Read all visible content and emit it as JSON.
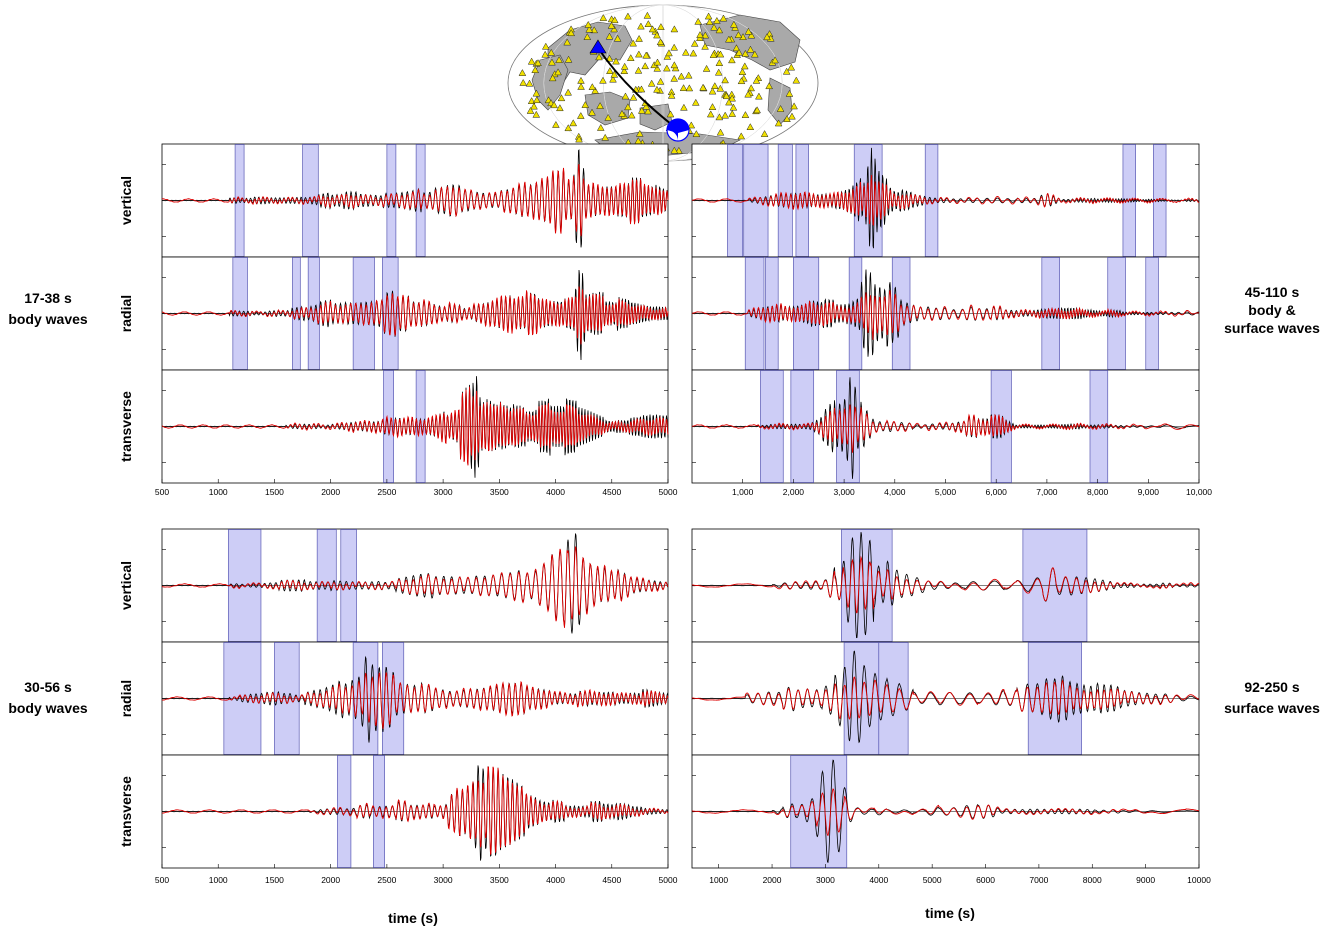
{
  "figure": {
    "xlabel": "time (s)",
    "band_labels": {
      "body_17_38": [
        "17-38 s",
        "body waves"
      ],
      "body_30_56": [
        "30-56 s",
        "body waves"
      ],
      "bodysurf_45_110": [
        "45-110 s",
        "body &",
        "surface waves"
      ],
      "surf_92_250": [
        "92-250 s",
        "surface waves"
      ]
    },
    "component_labels": [
      "vertical",
      "radial",
      "transverse"
    ],
    "colors": {
      "observed": "#000000",
      "synthetic": "#dd0000",
      "window_fill": "#c8c8f5",
      "window_stroke": "#5a5ab4",
      "station": "#f0e000",
      "source": "#0000ff"
    }
  },
  "map": {
    "projection": "global map (Hammer-like, Pacific-centred)",
    "station_marker": "yellow triangles",
    "selected_station": "blue triangle",
    "source": "blue-white focal mechanism beachball"
  },
  "chart_data": [
    {
      "id": "panel-17-38",
      "type": "line",
      "band": "17-38 s body waves",
      "xlim": [
        500,
        5000
      ],
      "xticks": [
        500,
        1000,
        1500,
        2000,
        2500,
        3000,
        3500,
        4000,
        4500,
        5000
      ],
      "xtick_labels": [
        "500",
        "1000",
        "1500",
        "2000",
        "2500",
        "3000",
        "3500",
        "4000",
        "4500",
        "5000"
      ],
      "series": [
        {
          "name": "vertical",
          "windows": [
            [
              1150,
              1230
            ],
            [
              1750,
              1890
            ],
            [
              2500,
              2580
            ],
            [
              2760,
              2840
            ]
          ],
          "waveform": {
            "onset": 1100,
            "envelope": [
              [
                1100,
                0.05
              ],
              [
                1800,
                0.12
              ],
              [
                2500,
                0.25
              ],
              [
                3000,
                0.3
              ],
              [
                3600,
                0.35
              ],
              [
                4000,
                0.55
              ],
              [
                4300,
                0.8
              ],
              [
                4600,
                0.55
              ],
              [
                5000,
                0.2
              ]
            ],
            "period": 40,
            "peak": [
              4210,
              1.0
            ]
          }
        },
        {
          "name": "radial",
          "windows": [
            [
              1130,
              1260
            ],
            [
              1660,
              1730
            ],
            [
              1800,
              1900
            ],
            [
              2200,
              2390
            ],
            [
              2460,
              2600
            ]
          ],
          "waveform": {
            "onset": 1100,
            "envelope": [
              [
                1100,
                0.05
              ],
              [
                1800,
                0.15
              ],
              [
                2300,
                0.55
              ],
              [
                2600,
                0.45
              ],
              [
                3000,
                0.3
              ],
              [
                3700,
                0.45
              ],
              [
                4200,
                0.55
              ],
              [
                4600,
                0.35
              ],
              [
                5000,
                0.25
              ]
            ],
            "period": 38,
            "peak": [
              4220,
              0.9
            ]
          }
        },
        {
          "name": "transverse",
          "windows": [
            [
              2470,
              2560
            ],
            [
              2760,
              2840
            ]
          ],
          "waveform": {
            "onset": 1600,
            "envelope": [
              [
                1600,
                0.03
              ],
              [
                2300,
                0.12
              ],
              [
                2800,
                0.25
              ],
              [
                3300,
                0.8
              ],
              [
                3800,
                0.75
              ],
              [
                4200,
                0.5
              ],
              [
                4600,
                0.3
              ],
              [
                5000,
                0.2
              ]
            ],
            "period": 36,
            "peak": [
              3290,
              1.0
            ]
          }
        }
      ]
    },
    {
      "id": "panel-45-110",
      "type": "line",
      "band": "45-110 s body & surface waves",
      "xlim": [
        0,
        10000
      ],
      "xticks": [
        1000,
        2000,
        3000,
        4000,
        5000,
        6000,
        7000,
        8000,
        9000,
        10000
      ],
      "xtick_labels": [
        "1,000",
        "2,000",
        "3,000",
        "4,000",
        "5,000",
        "6,000",
        "7,000",
        "8,000",
        "9,000",
        "10,000"
      ],
      "series": [
        {
          "name": "vertical",
          "windows": [
            [
              700,
              1000
            ],
            [
              1020,
              1500
            ],
            [
              1700,
              1980
            ],
            [
              2050,
              2300
            ],
            [
              3200,
              3750
            ],
            [
              4600,
              4850
            ],
            [
              8500,
              8750
            ],
            [
              9100,
              9350
            ]
          ],
          "waveform": {
            "onset": 1100,
            "envelope": [
              [
                1100,
                0.05
              ],
              [
                2000,
                0.15
              ],
              [
                3000,
                0.3
              ],
              [
                3550,
                0.85
              ],
              [
                4000,
                0.25
              ],
              [
                5000,
                0.08
              ],
              [
                6800,
                0.05
              ],
              [
                7000,
                0.25
              ],
              [
                7300,
                0.05
              ],
              [
                10000,
                0.03
              ]
            ],
            "period": 95,
            "peak": [
              3550,
              1.0
            ]
          }
        },
        {
          "name": "radial",
          "windows": [
            [
              1050,
              1420
            ],
            [
              1450,
              1700
            ],
            [
              2000,
              2500
            ],
            [
              3100,
              3350
            ],
            [
              3950,
              4300
            ],
            [
              6900,
              7250
            ],
            [
              8200,
              8550
            ],
            [
              8950,
              9200
            ]
          ],
          "waveform": {
            "onset": 1100,
            "envelope": [
              [
                1100,
                0.05
              ],
              [
                2000,
                0.25
              ],
              [
                2350,
                0.6
              ],
              [
                3000,
                0.3
              ],
              [
                3550,
                0.75
              ],
              [
                4200,
                0.45
              ],
              [
                5000,
                0.15
              ],
              [
                6700,
                0.1
              ],
              [
                7000,
                0.2
              ],
              [
                8000,
                0.08
              ],
              [
                10000,
                0.03
              ]
            ],
            "period": 95,
            "peak": [
              3450,
              0.85
            ]
          }
        },
        {
          "name": "transverse",
          "windows": [
            [
              1350,
              1800
            ],
            [
              1950,
              2400
            ],
            [
              2850,
              3300
            ],
            [
              5900,
              6300
            ],
            [
              7850,
              8200
            ]
          ],
          "waveform": {
            "onset": 1300,
            "envelope": [
              [
                1300,
                0.03
              ],
              [
                2300,
                0.1
              ],
              [
                3150,
                0.9
              ],
              [
                3600,
                0.15
              ],
              [
                5000,
                0.08
              ],
              [
                6100,
                0.3
              ],
              [
                6400,
                0.05
              ],
              [
                10000,
                0.03
              ]
            ],
            "period": 95,
            "peak": [
              3150,
              1.0
            ]
          }
        }
      ]
    },
    {
      "id": "panel-30-56",
      "type": "line",
      "band": "30-56 s body waves",
      "xlim": [
        500,
        5000
      ],
      "xticks": [
        500,
        1000,
        1500,
        2000,
        2500,
        3000,
        3500,
        4000,
        4500,
        5000
      ],
      "xtick_labels": [
        "500",
        "1000",
        "1500",
        "2000",
        "2500",
        "3000",
        "3500",
        "4000",
        "4500",
        "5000"
      ],
      "series": [
        {
          "name": "vertical",
          "windows": [
            [
              1090,
              1380
            ],
            [
              1880,
              2050
            ],
            [
              2090,
              2230
            ]
          ],
          "waveform": {
            "onset": 1100,
            "envelope": [
              [
                1100,
                0.05
              ],
              [
                1900,
                0.12
              ],
              [
                2500,
                0.15
              ],
              [
                3200,
                0.3
              ],
              [
                3700,
                0.65
              ],
              [
                4200,
                0.85
              ],
              [
                4600,
                0.35
              ],
              [
                5000,
                0.12
              ]
            ],
            "period": 55,
            "peak": [
              4170,
              1.0
            ]
          }
        },
        {
          "name": "radial",
          "windows": [
            [
              1050,
              1380
            ],
            [
              1500,
              1720
            ],
            [
              2200,
              2420
            ],
            [
              2460,
              2650
            ]
          ],
          "waveform": {
            "onset": 1100,
            "envelope": [
              [
                1100,
                0.05
              ],
              [
                1800,
                0.2
              ],
              [
                2300,
                0.8
              ],
              [
                2600,
                0.4
              ],
              [
                3200,
                0.3
              ],
              [
                3800,
                0.3
              ],
              [
                4400,
                0.25
              ],
              [
                5000,
                0.1
              ]
            ],
            "period": 50,
            "peak": [
              2330,
              0.85
            ]
          }
        },
        {
          "name": "transverse",
          "windows": [
            [
              2060,
              2180
            ],
            [
              2380,
              2480
            ]
          ],
          "waveform": {
            "onset": 1800,
            "envelope": [
              [
                1800,
                0.03
              ],
              [
                2400,
                0.15
              ],
              [
                3000,
                0.35
              ],
              [
                3300,
                0.85
              ],
              [
                3700,
                0.6
              ],
              [
                4200,
                0.3
              ],
              [
                4700,
                0.1
              ],
              [
                5000,
                0.08
              ]
            ],
            "period": 50,
            "peak": [
              3330,
              0.95
            ]
          }
        }
      ]
    },
    {
      "id": "panel-92-250",
      "type": "line",
      "band": "92-250 s surface waves",
      "xlim": [
        500,
        10000
      ],
      "xticks": [
        1000,
        2000,
        3000,
        4000,
        5000,
        6000,
        7000,
        8000,
        9000,
        10000
      ],
      "xtick_labels": [
        "1000",
        "2000",
        "3000",
        "4000",
        "5000",
        "6000",
        "7000",
        "8000",
        "9000",
        "10000"
      ],
      "series": [
        {
          "name": "vertical",
          "windows": [
            [
              3300,
              4250
            ],
            [
              6700,
              7900
            ]
          ],
          "waveform": {
            "onset": 2000,
            "envelope": [
              [
                2000,
                0.05
              ],
              [
                2300,
                0.15
              ],
              [
                3000,
                0.12
              ],
              [
                3600,
                1.0
              ],
              [
                4400,
                0.25
              ],
              [
                5500,
                0.1
              ],
              [
                6800,
                0.25
              ],
              [
                7200,
                0.55
              ],
              [
                7700,
                0.3
              ],
              [
                8500,
                0.05
              ],
              [
                10000,
                0.04
              ]
            ],
            "period": 210,
            "peak": [
              3600,
              1.0
            ]
          }
        },
        {
          "name": "radial",
          "windows": [
            [
              3350,
              4000
            ],
            [
              4000,
              4550
            ],
            [
              6800,
              7800
            ]
          ],
          "waveform": {
            "onset": 1500,
            "envelope": [
              [
                1500,
                0.1
              ],
              [
                2500,
                0.25
              ],
              [
                3000,
                0.3
              ],
              [
                3600,
                0.85
              ],
              [
                4200,
                0.45
              ],
              [
                5000,
                0.2
              ],
              [
                6000,
                0.2
              ],
              [
                7200,
                0.55
              ],
              [
                7700,
                0.35
              ],
              [
                8500,
                0.2
              ],
              [
                10000,
                0.05
              ]
            ],
            "period": 210,
            "peak": [
              3550,
              0.9
            ]
          }
        },
        {
          "name": "transverse",
          "windows": [
            [
              2350,
              3400
            ]
          ],
          "waveform": {
            "onset": 2000,
            "envelope": [
              [
                2000,
                0.03
              ],
              [
                2600,
                0.2
              ],
              [
                3100,
                0.9
              ],
              [
                3500,
                0.15
              ],
              [
                4500,
                0.05
              ],
              [
                6000,
                0.28
              ],
              [
                6300,
                0.05
              ],
              [
                10000,
                0.03
              ]
            ],
            "period": 210,
            "peak": [
              3100,
              1.0
            ]
          }
        }
      ]
    }
  ]
}
